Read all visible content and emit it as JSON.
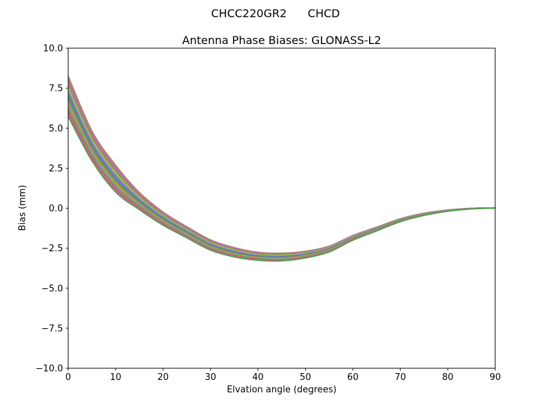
{
  "figure": {
    "background": "#ffffff",
    "suptitle": "CHCC220GR2      CHCD",
    "axes_title": "Antenna Phase Biases: GLONASS-L2"
  },
  "chart_data": {
    "type": "line",
    "title": "Antenna Phase Biases: GLONASS-L2",
    "xlabel": "Elvation angle (degrees)",
    "ylabel": "Bias (mm)",
    "xlim": [
      0,
      90
    ],
    "ylim": [
      -10,
      10
    ],
    "grid": false,
    "legend": "none",
    "n_lines": 24,
    "xticks": [
      0,
      10,
      20,
      30,
      40,
      50,
      60,
      70,
      80,
      90
    ],
    "yticks": [
      {
        "value": 10.0,
        "label": "10.0"
      },
      {
        "value": 7.5,
        "label": "7.5"
      },
      {
        "value": 5.0,
        "label": "5.0"
      },
      {
        "value": 2.5,
        "label": "2.5"
      },
      {
        "value": 0.0,
        "label": "0.0"
      },
      {
        "value": -2.5,
        "label": "−2.5"
      },
      {
        "value": -5.0,
        "label": "−5.0"
      },
      {
        "value": -7.5,
        "label": "−7.5"
      },
      {
        "value": -10.0,
        "label": "−10.0"
      }
    ],
    "x": [
      0,
      5,
      10,
      15,
      20,
      25,
      30,
      35,
      40,
      45,
      50,
      55,
      60,
      65,
      70,
      75,
      80,
      85,
      90
    ],
    "band": {
      "description": "bundle of satellite phase-bias curves; each line = center + offset_factor * half_width",
      "center": [
        7.0,
        3.9,
        1.85,
        0.45,
        -0.65,
        -1.5,
        -2.3,
        -2.75,
        -3.0,
        -3.05,
        -2.9,
        -2.55,
        -1.85,
        -1.3,
        -0.75,
        -0.38,
        -0.15,
        -0.02,
        0.02
      ],
      "half_width": [
        1.28,
        0.95,
        0.85,
        0.55,
        0.42,
        0.36,
        0.33,
        0.3,
        0.26,
        0.25,
        0.22,
        0.19,
        0.16,
        0.13,
        0.1,
        0.08,
        0.05,
        0.03,
        0.02
      ]
    },
    "lines": [
      {
        "color": "#8F8F2D",
        "offset_factor": 1.0
      },
      {
        "color": "#C778B8",
        "offset_factor": 0.913
      },
      {
        "color": "#B8679E",
        "offset_factor": 0.826
      },
      {
        "color": "#C96A8F",
        "offset_factor": 0.739
      },
      {
        "color": "#C778B8",
        "offset_factor": 0.652
      },
      {
        "color": "#3AA63A",
        "offset_factor": 0.565
      },
      {
        "color": "#9FBF3B",
        "offset_factor": 0.478
      },
      {
        "color": "#C9B635",
        "offset_factor": 0.391
      },
      {
        "color": "#C778B8",
        "offset_factor": 0.304
      },
      {
        "color": "#35AFD4",
        "offset_factor": 0.217
      },
      {
        "color": "#5579C4",
        "offset_factor": 0.13
      },
      {
        "color": "#B8679E",
        "offset_factor": 0.043
      },
      {
        "color": "#2F9595",
        "offset_factor": -0.043
      },
      {
        "color": "#3AA63A",
        "offset_factor": -0.13
      },
      {
        "color": "#D98A33",
        "offset_factor": -0.217
      },
      {
        "color": "#C96A8F",
        "offset_factor": -0.304
      },
      {
        "color": "#9FBF3B",
        "offset_factor": -0.391
      },
      {
        "color": "#35AFD4",
        "offset_factor": -0.478
      },
      {
        "color": "#8F8F2D",
        "offset_factor": -0.565
      },
      {
        "color": "#C778B8",
        "offset_factor": -0.652
      },
      {
        "color": "#B2622F",
        "offset_factor": -0.739
      },
      {
        "color": "#C96A8F",
        "offset_factor": -0.826
      },
      {
        "color": "#B8679E",
        "offset_factor": -0.913
      },
      {
        "color": "#3AA63A",
        "offset_factor": -1.0
      }
    ],
    "axis_color": "#000000",
    "line_width": 1.4
  }
}
